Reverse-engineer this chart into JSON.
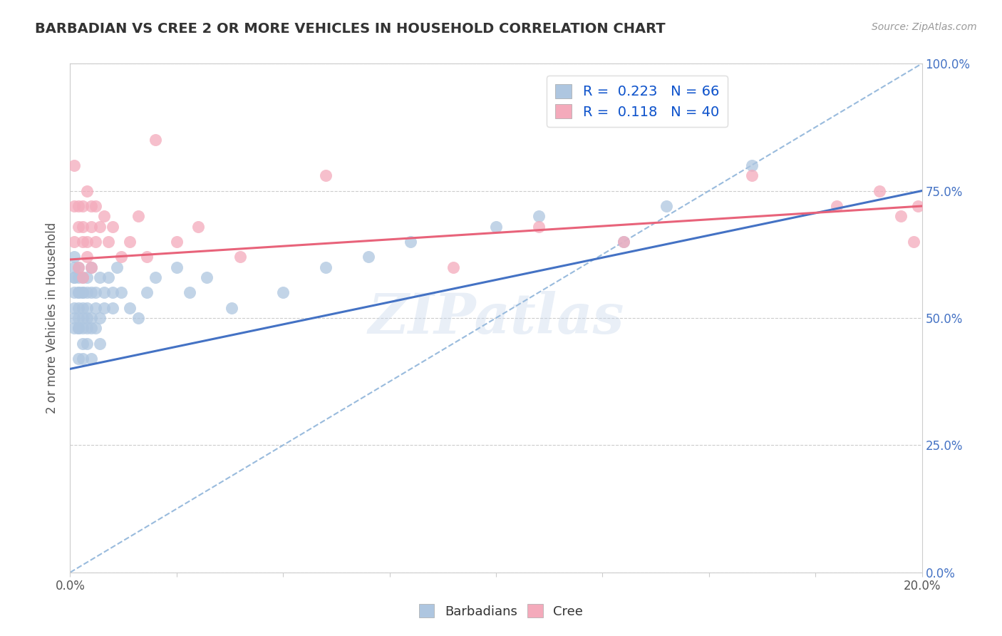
{
  "title": "BARBADIAN VS CREE 2 OR MORE VEHICLES IN HOUSEHOLD CORRELATION CHART",
  "source_text": "Source: ZipAtlas.com",
  "ylabel": "2 or more Vehicles in Household",
  "legend_label_1": "Barbadians",
  "legend_label_2": "Cree",
  "R1": 0.223,
  "N1": 66,
  "R2": 0.118,
  "N2": 40,
  "xlim": [
    0.0,
    0.2
  ],
  "ylim": [
    0.0,
    1.0
  ],
  "right_yticks": [
    0.0,
    0.25,
    0.5,
    0.75,
    1.0
  ],
  "right_yticklabels": [
    "0.0%",
    "25.0%",
    "50.0%",
    "75.0%",
    "100.0%"
  ],
  "color_barbadian": "#AEC6E0",
  "color_cree": "#F4AABB",
  "color_trend_barbadian": "#4472C4",
  "color_trend_cree": "#E8637A",
  "color_ref_line": "#99BBDD",
  "background_color": "#FFFFFF",
  "watermark": "ZIPatlas",
  "trend_barb_x0": 0.0,
  "trend_barb_y0": 0.4,
  "trend_barb_x1": 0.2,
  "trend_barb_y1": 0.75,
  "trend_cree_x0": 0.0,
  "trend_cree_y0": 0.615,
  "trend_cree_x1": 0.2,
  "trend_cree_y1": 0.72,
  "barbadian_x": [
    0.001,
    0.001,
    0.001,
    0.001,
    0.001,
    0.001,
    0.001,
    0.001,
    0.002,
    0.002,
    0.002,
    0.002,
    0.002,
    0.002,
    0.002,
    0.002,
    0.002,
    0.003,
    0.003,
    0.003,
    0.003,
    0.003,
    0.003,
    0.003,
    0.003,
    0.004,
    0.004,
    0.004,
    0.004,
    0.004,
    0.004,
    0.005,
    0.005,
    0.005,
    0.005,
    0.005,
    0.006,
    0.006,
    0.006,
    0.007,
    0.007,
    0.007,
    0.008,
    0.008,
    0.009,
    0.01,
    0.01,
    0.011,
    0.012,
    0.014,
    0.016,
    0.018,
    0.02,
    0.025,
    0.028,
    0.032,
    0.038,
    0.05,
    0.06,
    0.07,
    0.08,
    0.1,
    0.11,
    0.13,
    0.14,
    0.16
  ],
  "barbadian_y": [
    0.58,
    0.62,
    0.55,
    0.5,
    0.48,
    0.52,
    0.58,
    0.6,
    0.5,
    0.48,
    0.55,
    0.42,
    0.58,
    0.52,
    0.6,
    0.48,
    0.55,
    0.52,
    0.48,
    0.55,
    0.58,
    0.45,
    0.42,
    0.5,
    0.55,
    0.55,
    0.5,
    0.48,
    0.52,
    0.58,
    0.45,
    0.55,
    0.6,
    0.5,
    0.48,
    0.42,
    0.55,
    0.52,
    0.48,
    0.58,
    0.5,
    0.45,
    0.55,
    0.52,
    0.58,
    0.55,
    0.52,
    0.6,
    0.55,
    0.52,
    0.5,
    0.55,
    0.58,
    0.6,
    0.55,
    0.58,
    0.52,
    0.55,
    0.6,
    0.62,
    0.65,
    0.68,
    0.7,
    0.65,
    0.72,
    0.8
  ],
  "cree_x": [
    0.001,
    0.001,
    0.001,
    0.002,
    0.002,
    0.002,
    0.003,
    0.003,
    0.003,
    0.003,
    0.004,
    0.004,
    0.004,
    0.005,
    0.005,
    0.005,
    0.006,
    0.006,
    0.007,
    0.008,
    0.009,
    0.01,
    0.012,
    0.014,
    0.016,
    0.018,
    0.02,
    0.025,
    0.03,
    0.04,
    0.06,
    0.09,
    0.11,
    0.13,
    0.16,
    0.18,
    0.19,
    0.195,
    0.198,
    0.199
  ],
  "cree_y": [
    0.72,
    0.65,
    0.8,
    0.68,
    0.6,
    0.72,
    0.65,
    0.58,
    0.72,
    0.68,
    0.62,
    0.75,
    0.65,
    0.68,
    0.72,
    0.6,
    0.65,
    0.72,
    0.68,
    0.7,
    0.65,
    0.68,
    0.62,
    0.65,
    0.7,
    0.62,
    0.85,
    0.65,
    0.68,
    0.62,
    0.78,
    0.6,
    0.68,
    0.65,
    0.78,
    0.72,
    0.75,
    0.7,
    0.65,
    0.72
  ]
}
